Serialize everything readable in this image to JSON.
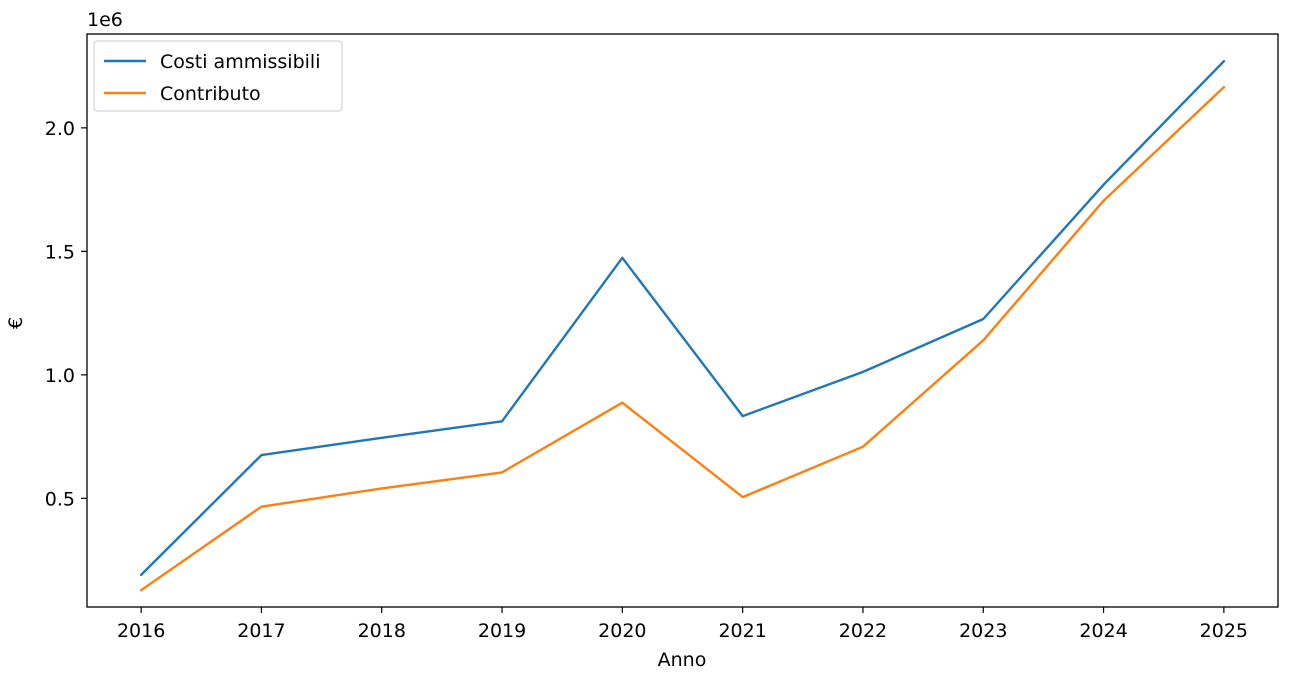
{
  "chart_data": {
    "type": "line",
    "x": [
      2016,
      2017,
      2018,
      2019,
      2020,
      2021,
      2022,
      2023,
      2024,
      2025
    ],
    "x_tick_labels": [
      "2016",
      "2017",
      "2018",
      "2019",
      "2020",
      "2021",
      "2022",
      "2023",
      "2024",
      "2025"
    ],
    "y_tick_values": [
      0.5,
      1.0,
      1.5,
      2.0
    ],
    "y_tick_labels": [
      "0.5",
      "1.0",
      "1.5",
      "2.0"
    ],
    "y_offset_label": "1e6",
    "xlabel": "Anno",
    "ylabel": "€",
    "xlim": [
      2015.55,
      2025.45
    ],
    "ylim": [
      0.06,
      2.38
    ],
    "grid": false,
    "legend_position": "upper-left",
    "series": [
      {
        "name": "Costi ammissibili",
        "color": "#1f77b4",
        "values": [
          0.19,
          0.675,
          0.745,
          0.812,
          1.474,
          0.833,
          1.012,
          1.226,
          1.77,
          2.27
        ]
      },
      {
        "name": "Contributo",
        "color": "#ff7f0e",
        "values": [
          0.128,
          0.466,
          0.54,
          0.605,
          0.887,
          0.505,
          0.709,
          1.14,
          1.705,
          2.165
        ]
      }
    ]
  }
}
